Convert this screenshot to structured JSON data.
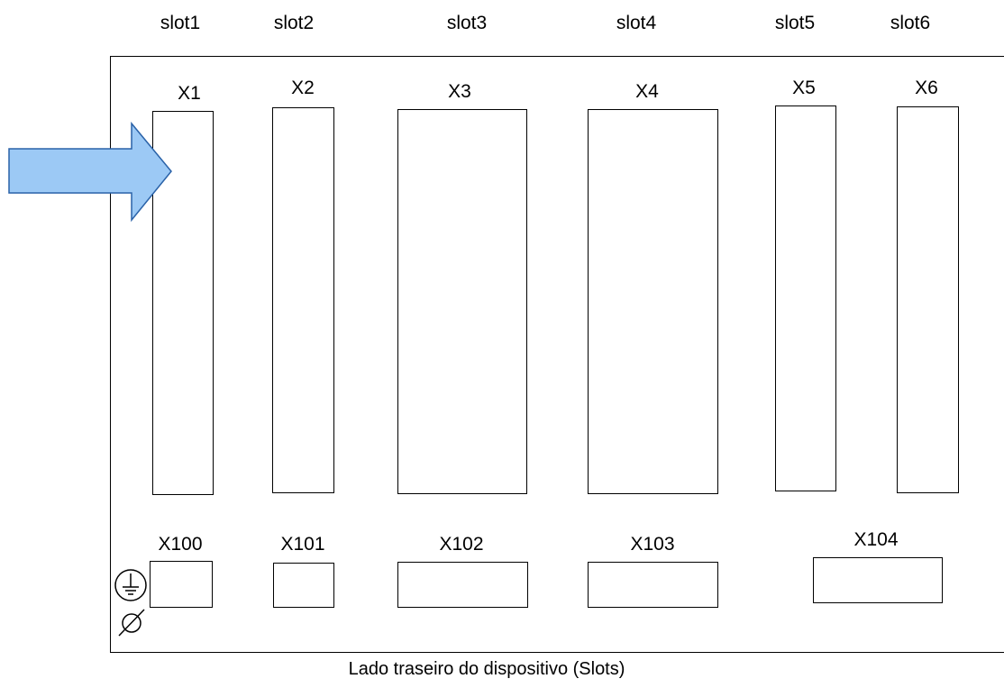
{
  "slots": [
    "slot1",
    "slot2",
    "slot3",
    "slot4",
    "slot5",
    "slot6"
  ],
  "connectors_top": [
    "X1",
    "X2",
    "X3",
    "X4",
    "X5",
    "X6"
  ],
  "connectors_bottom": [
    "X100",
    "X101",
    "X102",
    "X103",
    "X104"
  ],
  "caption": "Lado traseiro do dispositivo (Slots)",
  "icons": {
    "ground": "protective-earth-icon",
    "diameter": "diameter-icon",
    "arrow": "right-arrow-icon"
  },
  "colors": {
    "arrow_fill": "#9cc9f5",
    "arrow_stroke": "#2a62a8"
  }
}
